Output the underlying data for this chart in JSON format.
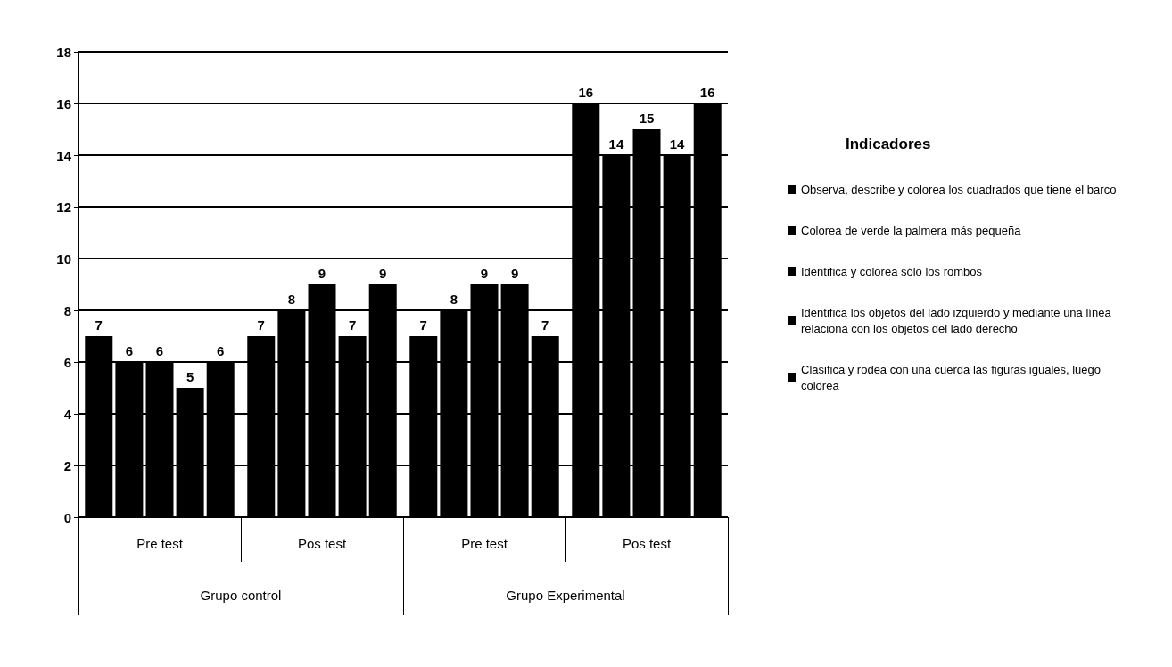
{
  "chart_data": {
    "type": "bar",
    "legend_title": "Indicadores",
    "categories": [
      "Pre test",
      "Pos test",
      "Pre test",
      "Pos test"
    ],
    "annotations": [
      "Grupo control",
      "Grupo Experimental"
    ],
    "series": [
      {
        "name": "Observa, describe y colorea los cuadrados que tiene el barco",
        "color": "#000000",
        "values": [
          7,
          7,
          7,
          16
        ]
      },
      {
        "name": "Colorea de verde la palmera más pequeña",
        "color": "#000000",
        "values": [
          6,
          8,
          8,
          14
        ]
      },
      {
        "name": "Identifica y colorea sólo los rombos",
        "color": "#000000",
        "values": [
          6,
          9,
          9,
          15
        ]
      },
      {
        "name": "Identifica los objetos del lado izquierdo y mediante una línea relaciona con los objetos del lado derecho",
        "color": "#000000",
        "values": [
          5,
          7,
          9,
          14
        ]
      },
      {
        "name": "Clasifica y rodea con una cuerda las figuras iguales, luego colorea",
        "color": "#000000",
        "values": [
          6,
          9,
          7,
          16
        ]
      }
    ],
    "ylim": [
      0,
      18
    ],
    "yticks": [
      0,
      2,
      4,
      6,
      8,
      10,
      12,
      14,
      16,
      18
    ],
    "grid": "y",
    "legend": "right",
    "data_labels": true
  }
}
